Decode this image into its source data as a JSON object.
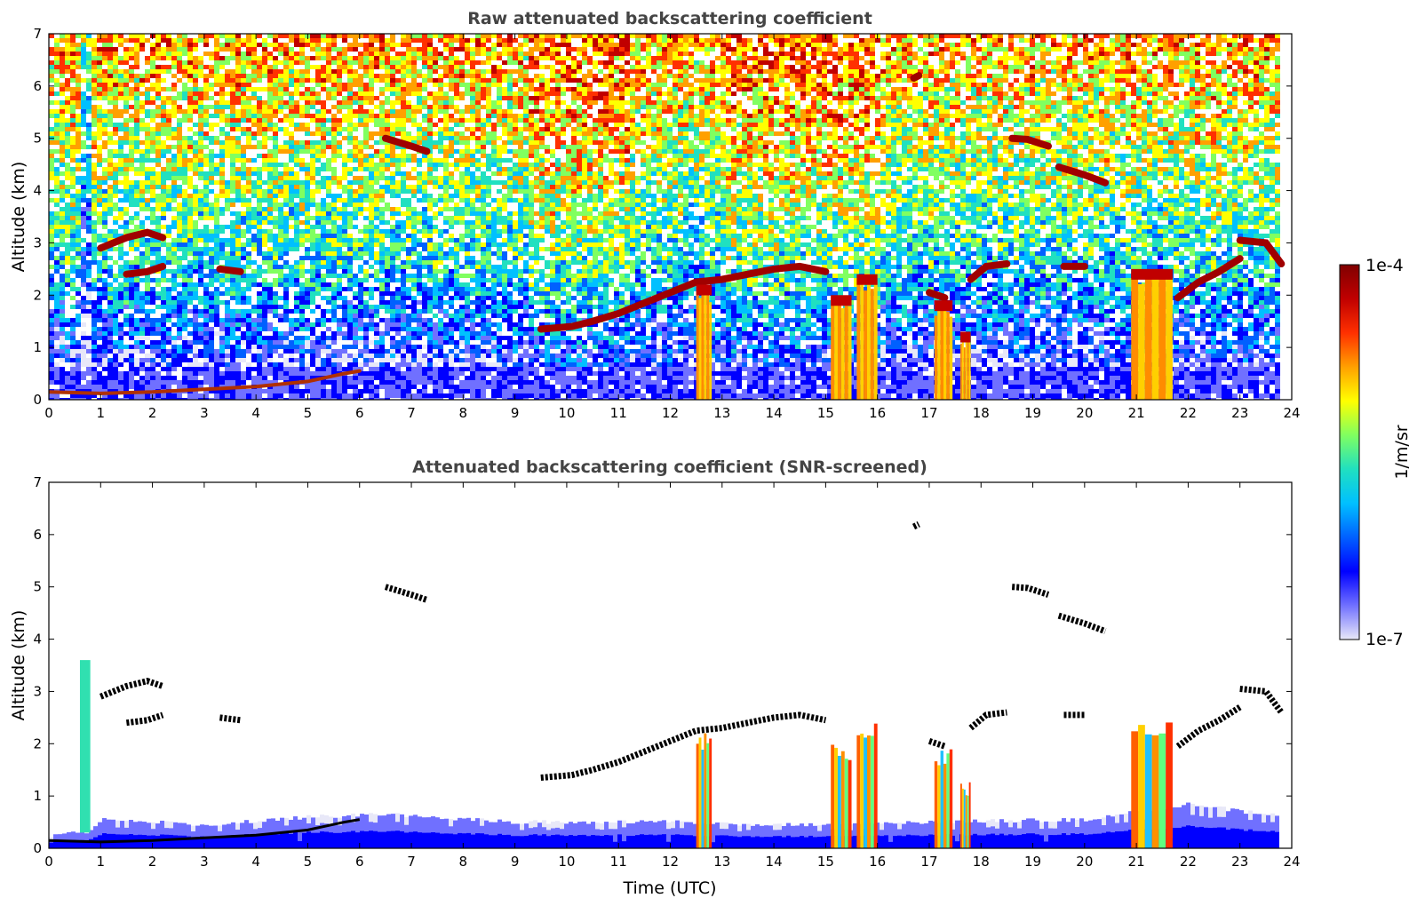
{
  "chart_data": [
    {
      "type": "heatmap",
      "title": "Raw attenuated backscattering coefficient",
      "xlabel": "",
      "ylabel": "Altitude (km)",
      "xlim": [
        0,
        24
      ],
      "ylim": [
        0,
        7
      ],
      "x_ticks": [
        "0",
        "1",
        "2",
        "3",
        "4",
        "5",
        "6",
        "7",
        "8",
        "9",
        "10",
        "11",
        "12",
        "13",
        "14",
        "15",
        "16",
        "17",
        "18",
        "19",
        "20",
        "21",
        "22",
        "23",
        "24"
      ],
      "y_ticks": [
        "0",
        "1",
        "2",
        "3",
        "4",
        "5",
        "6",
        "7"
      ],
      "grid": false,
      "background_profile": [
        {
          "altitude_km": 0.3,
          "level": 0.05
        },
        {
          "altitude_km": 1.0,
          "level": 0.22
        },
        {
          "altitude_km": 2.5,
          "level": 0.45
        },
        {
          "altitude_km": 4.0,
          "level": 0.58
        },
        {
          "altitude_km": 5.5,
          "level": 0.68
        },
        {
          "altitude_km": 7.0,
          "level": 0.78
        }
      ],
      "features": [
        {
          "kind": "aerosol-layer-top",
          "points": [
            [
              0.0,
              0.15
            ],
            [
              1.0,
              0.12
            ],
            [
              2.0,
              0.15
            ],
            [
              3.0,
              0.2
            ],
            [
              4.0,
              0.25
            ],
            [
              5.0,
              0.35
            ],
            [
              5.7,
              0.5
            ],
            [
              6.0,
              0.55
            ]
          ]
        },
        {
          "kind": "cloud",
          "points": [
            [
              1.0,
              2.9
            ],
            [
              1.5,
              3.1
            ],
            [
              1.9,
              3.2
            ],
            [
              2.2,
              3.1
            ]
          ]
        },
        {
          "kind": "cloud",
          "points": [
            [
              1.5,
              2.4
            ],
            [
              1.9,
              2.45
            ],
            [
              2.2,
              2.55
            ]
          ]
        },
        {
          "kind": "cloud",
          "points": [
            [
              3.3,
              2.5
            ],
            [
              3.7,
              2.45
            ]
          ]
        },
        {
          "kind": "cloud",
          "points": [
            [
              6.5,
              5.0
            ],
            [
              7.0,
              4.85
            ],
            [
              7.3,
              4.75
            ]
          ]
        },
        {
          "kind": "cloud",
          "points": [
            [
              9.5,
              1.35
            ],
            [
              10.1,
              1.4
            ],
            [
              10.5,
              1.5
            ],
            [
              11.0,
              1.65
            ],
            [
              11.5,
              1.85
            ],
            [
              12.0,
              2.05
            ],
            [
              12.5,
              2.25
            ],
            [
              13.0,
              2.3
            ],
            [
              13.5,
              2.4
            ],
            [
              14.0,
              2.5
            ],
            [
              14.5,
              2.55
            ],
            [
              15.0,
              2.45
            ]
          ]
        },
        {
          "kind": "cloud",
          "points": [
            [
              16.7,
              6.15
            ],
            [
              16.8,
              6.2
            ]
          ]
        },
        {
          "kind": "cloud",
          "points": [
            [
              17.0,
              2.05
            ],
            [
              17.3,
              1.95
            ]
          ]
        },
        {
          "kind": "cloud",
          "points": [
            [
              17.8,
              2.3
            ],
            [
              18.1,
              2.55
            ],
            [
              18.5,
              2.6
            ]
          ]
        },
        {
          "kind": "cloud",
          "points": [
            [
              18.6,
              5.0
            ],
            [
              18.9,
              4.98
            ],
            [
              19.3,
              4.85
            ]
          ]
        },
        {
          "kind": "cloud",
          "points": [
            [
              19.5,
              4.45
            ],
            [
              20.0,
              4.3
            ],
            [
              20.4,
              4.15
            ]
          ]
        },
        {
          "kind": "cloud",
          "points": [
            [
              19.6,
              2.55
            ],
            [
              20.0,
              2.55
            ]
          ]
        },
        {
          "kind": "cloud",
          "points": [
            [
              21.8,
              1.95
            ],
            [
              22.2,
              2.25
            ],
            [
              22.6,
              2.45
            ],
            [
              23.0,
              2.7
            ]
          ]
        },
        {
          "kind": "cloud",
          "points": [
            [
              23.0,
              3.05
            ],
            [
              23.5,
              3.0
            ],
            [
              23.8,
              2.6
            ]
          ]
        },
        {
          "kind": "precipitation",
          "x_range": [
            12.5,
            12.8
          ],
          "top_km": 2.2
        },
        {
          "kind": "precipitation",
          "x_range": [
            15.1,
            15.5
          ],
          "top_km": 2.0
        },
        {
          "kind": "precipitation",
          "x_range": [
            15.6,
            16.0
          ],
          "top_km": 2.4
        },
        {
          "kind": "precipitation",
          "x_range": [
            17.1,
            17.45
          ],
          "top_km": 1.9
        },
        {
          "kind": "precipitation",
          "x_range": [
            17.6,
            17.8
          ],
          "top_km": 1.3
        },
        {
          "kind": "precipitation",
          "x_range": [
            20.9,
            21.7
          ],
          "top_km": 2.5
        }
      ]
    },
    {
      "type": "heatmap",
      "title": "Attenuated backscattering coefficient (SNR-screened)",
      "xlabel": "Time (UTC)",
      "ylabel": "Altitude (km)",
      "xlim": [
        0,
        24
      ],
      "ylim": [
        0,
        7
      ],
      "x_ticks": [
        "0",
        "1",
        "2",
        "3",
        "4",
        "5",
        "6",
        "7",
        "8",
        "9",
        "10",
        "11",
        "12",
        "13",
        "14",
        "15",
        "16",
        "17",
        "18",
        "19",
        "20",
        "21",
        "22",
        "23",
        "24"
      ],
      "y_ticks": [
        "0",
        "1",
        "2",
        "3",
        "4",
        "5",
        "6",
        "7"
      ],
      "grid": false,
      "boundary_layer_top": [
        [
          0.0,
          0.25
        ],
        [
          0.7,
          0.3
        ],
        [
          1.0,
          0.55
        ],
        [
          3.0,
          0.45
        ],
        [
          5.0,
          0.6
        ],
        [
          6.5,
          0.65
        ],
        [
          9.0,
          0.5
        ],
        [
          12.0,
          0.5
        ],
        [
          14.0,
          0.45
        ],
        [
          17.0,
          0.5
        ],
        [
          20.0,
          0.55
        ],
        [
          22.0,
          0.85
        ],
        [
          23.8,
          0.6
        ]
      ],
      "features": [
        {
          "kind": "aerosol-plume",
          "x_range": [
            0.6,
            0.8
          ],
          "top_km": 3.6
        }
      ]
    }
  ],
  "colorbar": {
    "label": "1/m/sr",
    "max_label": "1e-4",
    "min_label": "1e-7",
    "scale": "log",
    "range": [
      1e-07,
      0.0001
    ],
    "colors": [
      "#e8e8f8",
      "#7070ff",
      "#0000ff",
      "#0060ff",
      "#00c0ff",
      "#20e0c0",
      "#80ff60",
      "#ffff00",
      "#ffa000",
      "#ff3000",
      "#c00000",
      "#800000"
    ]
  }
}
